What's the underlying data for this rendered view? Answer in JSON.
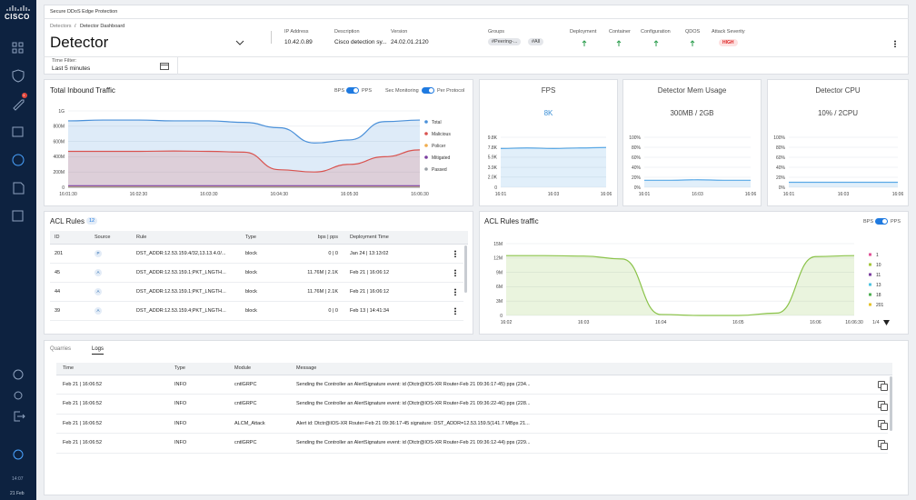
{
  "sidebar": {
    "logo": "CISCO",
    "badge": "1",
    "time": "14:07",
    "date": "21 Feb"
  },
  "header": {
    "product": "Secure DDoS Edge Protection",
    "breadcrumb": [
      "Detectors",
      "Detector Dashboard"
    ],
    "separator": "/",
    "title": "Detector",
    "fields": [
      {
        "label": "IP Address",
        "value": "10.42.0.89"
      },
      {
        "label": "Description",
        "value": "Cisco detection sy..."
      },
      {
        "label": "Version",
        "value": "24.02.01.2120"
      }
    ],
    "groups_label": "Groups",
    "groups": [
      "#Peering-...",
      "#All"
    ],
    "status": [
      "Deployment",
      "Container",
      "Configuration",
      "QDOS"
    ],
    "severity_label": "Attack Severity",
    "severity": "HIGH",
    "time_filter_label": "Time Filter:",
    "time_filter": "Last 5 minutes"
  },
  "inbound": {
    "title": "Total Inbound Traffic",
    "toggles": [
      {
        "left": "BPS",
        "right": "PPS"
      },
      {
        "left": "Sec Monitoring",
        "right": "Per Protocol"
      }
    ],
    "categories": [
      "16:01:30",
      null,
      "16:02:30",
      null,
      "16:03:30",
      null,
      "16:04:30",
      null,
      "16:05:30",
      null,
      "16:06:30"
    ],
    "series": [
      {
        "name": "Total",
        "color": "#4a90d9",
        "values": [
          870,
          880,
          880,
          870,
          870,
          850,
          780,
          580,
          620,
          860,
          880
        ]
      },
      {
        "name": "Malicious",
        "color": "#d9534f",
        "values": [
          470,
          470,
          470,
          475,
          470,
          460,
          230,
          200,
          300,
          400,
          490
        ]
      },
      {
        "name": "Policer",
        "color": "#f0ad4e",
        "values": [
          5,
          5,
          5,
          5,
          5,
          5,
          5,
          5,
          5,
          5,
          5
        ]
      },
      {
        "name": "Mitigated",
        "color": "#7b3fa0",
        "values": [
          20,
          20,
          20,
          20,
          20,
          20,
          20,
          20,
          20,
          20,
          20
        ]
      },
      {
        "name": "Passed",
        "color": "#9aa0a6",
        "values": [
          0,
          0,
          0,
          0,
          0,
          0,
          0,
          0,
          0,
          0,
          0
        ]
      }
    ],
    "ylim": [
      0,
      1000
    ],
    "yticks": [
      0,
      {
        "value": 200,
        "label": "200M"
      },
      {
        "value": 400,
        "label": "400M"
      },
      {
        "value": 600,
        "label": "600M"
      },
      {
        "value": 800,
        "label": "800M"
      },
      {
        "value": 1000,
        "label": "1G"
      }
    ],
    "legend": "right"
  },
  "fps": {
    "title": "FPS",
    "value": "8K",
    "categories": [
      "16:01",
      null,
      "16:03",
      null,
      "16:06"
    ],
    "series": [
      {
        "color": "#5aa9e6",
        "values": [
          7.6,
          7.7,
          7.6,
          7.7,
          7.8
        ]
      }
    ],
    "ylim": [
      0,
      9.8
    ],
    "yticks": [
      0,
      {
        "value": 2.0,
        "label": "2.0K"
      },
      {
        "value": 3.9,
        "label": "3.9K"
      },
      {
        "value": 5.9,
        "label": "5.9K"
      },
      {
        "value": 7.8,
        "label": "7.8K"
      },
      {
        "value": 9.8,
        "label": "9.8K"
      }
    ]
  },
  "mem": {
    "title": "Detector Mem Usage",
    "value": "300MB / 2GB",
    "categories": [
      "16:01",
      null,
      "16:03",
      null,
      "16:06"
    ],
    "series": [
      {
        "color": "#5aa9e6",
        "values": [
          14,
          14,
          15,
          14,
          14
        ]
      }
    ],
    "ylim": [
      0,
      100
    ],
    "yticks": [
      {
        "value": 0,
        "label": "0%"
      },
      {
        "value": 20,
        "label": "20%"
      },
      {
        "value": 40,
        "label": "40%"
      },
      {
        "value": 60,
        "label": "60%"
      },
      {
        "value": 80,
        "label": "80%"
      },
      {
        "value": 100,
        "label": "100%"
      }
    ]
  },
  "cpu": {
    "title": "Detector CPU",
    "value": "10% / 2CPU",
    "categories": [
      "16:01",
      null,
      "16:03",
      null,
      "16:06"
    ],
    "series": [
      {
        "color": "#5aa9e6",
        "values": [
          10,
          10,
          10,
          10,
          10
        ]
      }
    ],
    "ylim": [
      0,
      100
    ],
    "yticks": [
      {
        "value": 0,
        "label": "0%"
      },
      {
        "value": 20,
        "label": "20%"
      },
      {
        "value": 40,
        "label": "40%"
      },
      {
        "value": 60,
        "label": "60%"
      },
      {
        "value": 80,
        "label": "80%"
      },
      {
        "value": 100,
        "label": "100%"
      }
    ]
  },
  "acl": {
    "title": "ACL Rules",
    "count": 12,
    "columns": [
      "ID",
      "Source",
      "Rule",
      "Type",
      "bps | pps",
      "Deployment Time"
    ],
    "rows": [
      [
        201,
        "P",
        "DST_ADDR:12.53.159.4/32,13.13.4.0/...",
        "block",
        "0 | 0",
        "Jan 24 | 13:13:02"
      ],
      [
        45,
        "A",
        "DST_ADDR:12.53.159.1;PKT_LNGTH...",
        "block",
        "11.76M | 2.1K",
        "Feb 21 | 16:06:12"
      ],
      [
        44,
        "A",
        "DST_ADDR:12.53.159.1;PKT_LNGTH...",
        "block",
        "11.76M | 2.1K",
        "Feb 21 | 16:06:12"
      ],
      [
        39,
        "A",
        "DST_ADDR:12.53.159.4;PKT_LNGTH...",
        "block",
        "0 | 0",
        "Feb 13 | 14:41:34"
      ]
    ]
  },
  "acl_traffic": {
    "title": "ACL Rules traffic",
    "toggle": {
      "left": "BPS",
      "right": "PPS"
    },
    "categories": [
      "16:02",
      null,
      "16:03",
      null,
      "16:04",
      null,
      "16:05",
      null,
      "16:06",
      "16:06:30"
    ],
    "series": [
      {
        "color": "#8bc34a",
        "values": [
          12.5,
          12.5,
          12.4,
          11.8,
          0.2,
          0,
          0,
          0.5,
          12.3,
          12.5
        ]
      }
    ],
    "ylim": [
      0,
      15
    ],
    "yticks": [
      0,
      {
        "value": 3,
        "label": "3M"
      },
      {
        "value": 6,
        "label": "6M"
      },
      {
        "value": 9,
        "label": "9M"
      },
      {
        "value": 12,
        "label": "12M"
      },
      {
        "value": 15,
        "label": "15M"
      }
    ],
    "legend": [
      {
        "name": "1",
        "color": "#e05297"
      },
      {
        "name": "10",
        "color": "#a4c639"
      },
      {
        "name": "11",
        "color": "#7b3fa0"
      },
      {
        "name": "13",
        "color": "#4ec3e0"
      },
      {
        "name": "18",
        "color": "#4caf50"
      },
      {
        "name": "201",
        "color": "#e6c229"
      }
    ],
    "page": "1/4"
  },
  "logs": {
    "tabs": [
      "Quarries",
      "Logs"
    ],
    "active_tab": 1,
    "columns": [
      "Time",
      "Type",
      "Module",
      "Message"
    ],
    "rows": [
      [
        "Feb 21 | 16:06:52",
        "INFO",
        "cntlGRPC",
        "Sending the Controller an AlertSignature event: id (Dtctr@IOS-XR Router-Feb 21 09:36:17-45) pps (234..."
      ],
      [
        "Feb 21 | 16:06:52",
        "INFO",
        "cntlGRPC",
        "Sending the Controller an AlertSignature event: id (Dtctr@IOS-XR Router-Feb 21 09:36:22-46) pps (228..."
      ],
      [
        "Feb 21 | 16:06:52",
        "INFO",
        "ALCM_Attack",
        "Alert id: Dtctr@IOS-XR Router-Feb 21 09:36:17-45 signature: DST_ADDR=12.53.159.5(141.7 MBps 21..."
      ],
      [
        "Feb 21 | 16:06:52",
        "INFO",
        "cntlGRPC",
        "Sending the Controller an AlertSignature event: id (Dtctr@IOS-XR Router-Feb 21 09:36:12-44) pps (229..."
      ]
    ]
  }
}
